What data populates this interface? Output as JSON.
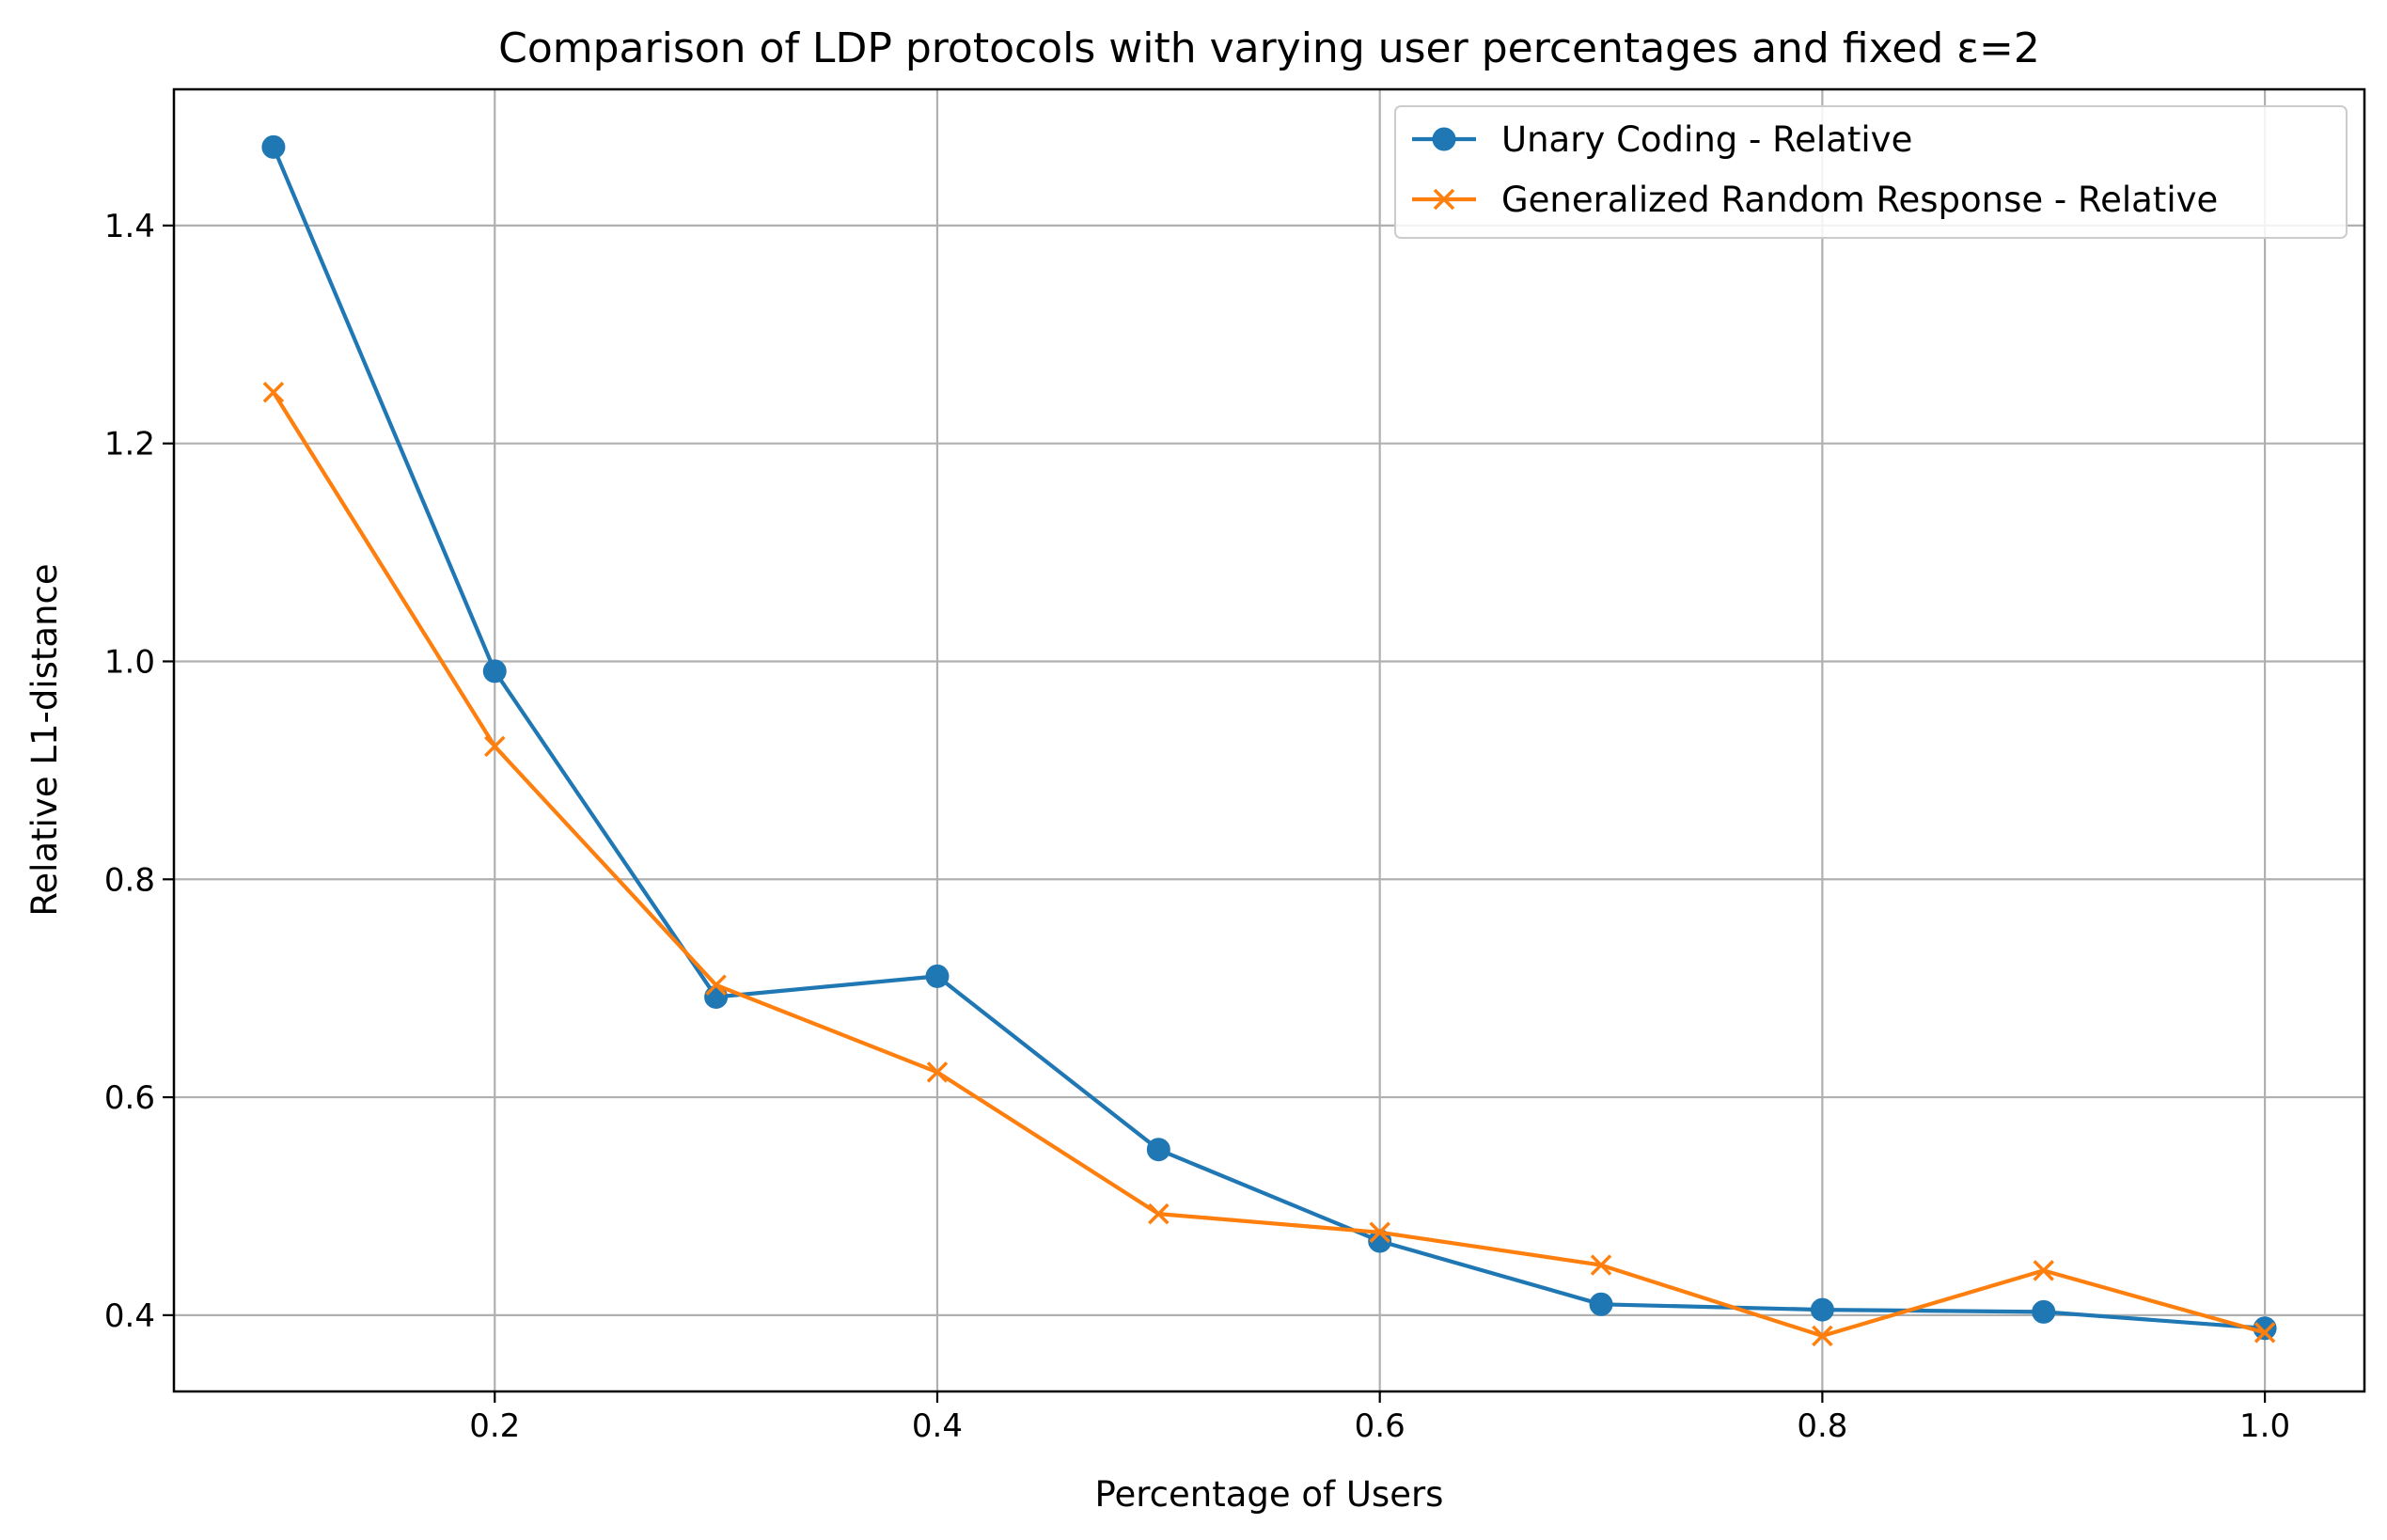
{
  "chart_data": {
    "type": "line",
    "title": "Comparison of LDP protocols with varying user percentages and fixed ε=2",
    "xlabel": "Percentage of Users",
    "ylabel": "Relative L1-distance",
    "xlim": [
      0.055,
      1.045
    ],
    "ylim": [
      0.33,
      1.525
    ],
    "xticks": [
      0.2,
      0.4,
      0.6,
      0.8,
      1.0
    ],
    "xtick_labels": [
      "0.2",
      "0.4",
      "0.6",
      "0.8",
      "1.0"
    ],
    "yticks": [
      0.4,
      0.6,
      0.8,
      1.0,
      1.2,
      1.4
    ],
    "ytick_labels": [
      "0.4",
      "0.6",
      "0.8",
      "1.0",
      "1.2",
      "1.4"
    ],
    "grid": true,
    "legend_position": "top-right",
    "x": [
      0.1,
      0.2,
      0.3,
      0.4,
      0.5,
      0.6,
      0.7,
      0.8,
      0.9,
      1.0
    ],
    "series": [
      {
        "name": "Unary Coding - Relative",
        "color": "#1f77b4",
        "marker": "circle",
        "values": [
          1.472,
          0.991,
          0.692,
          0.711,
          0.552,
          0.468,
          0.41,
          0.405,
          0.403,
          0.388
        ]
      },
      {
        "name": "Generalized Random Response - Relative",
        "color": "#ff7f0e",
        "marker": "x",
        "values": [
          1.247,
          0.922,
          0.703,
          0.623,
          0.493,
          0.476,
          0.446,
          0.381,
          0.441,
          0.384
        ]
      }
    ]
  }
}
